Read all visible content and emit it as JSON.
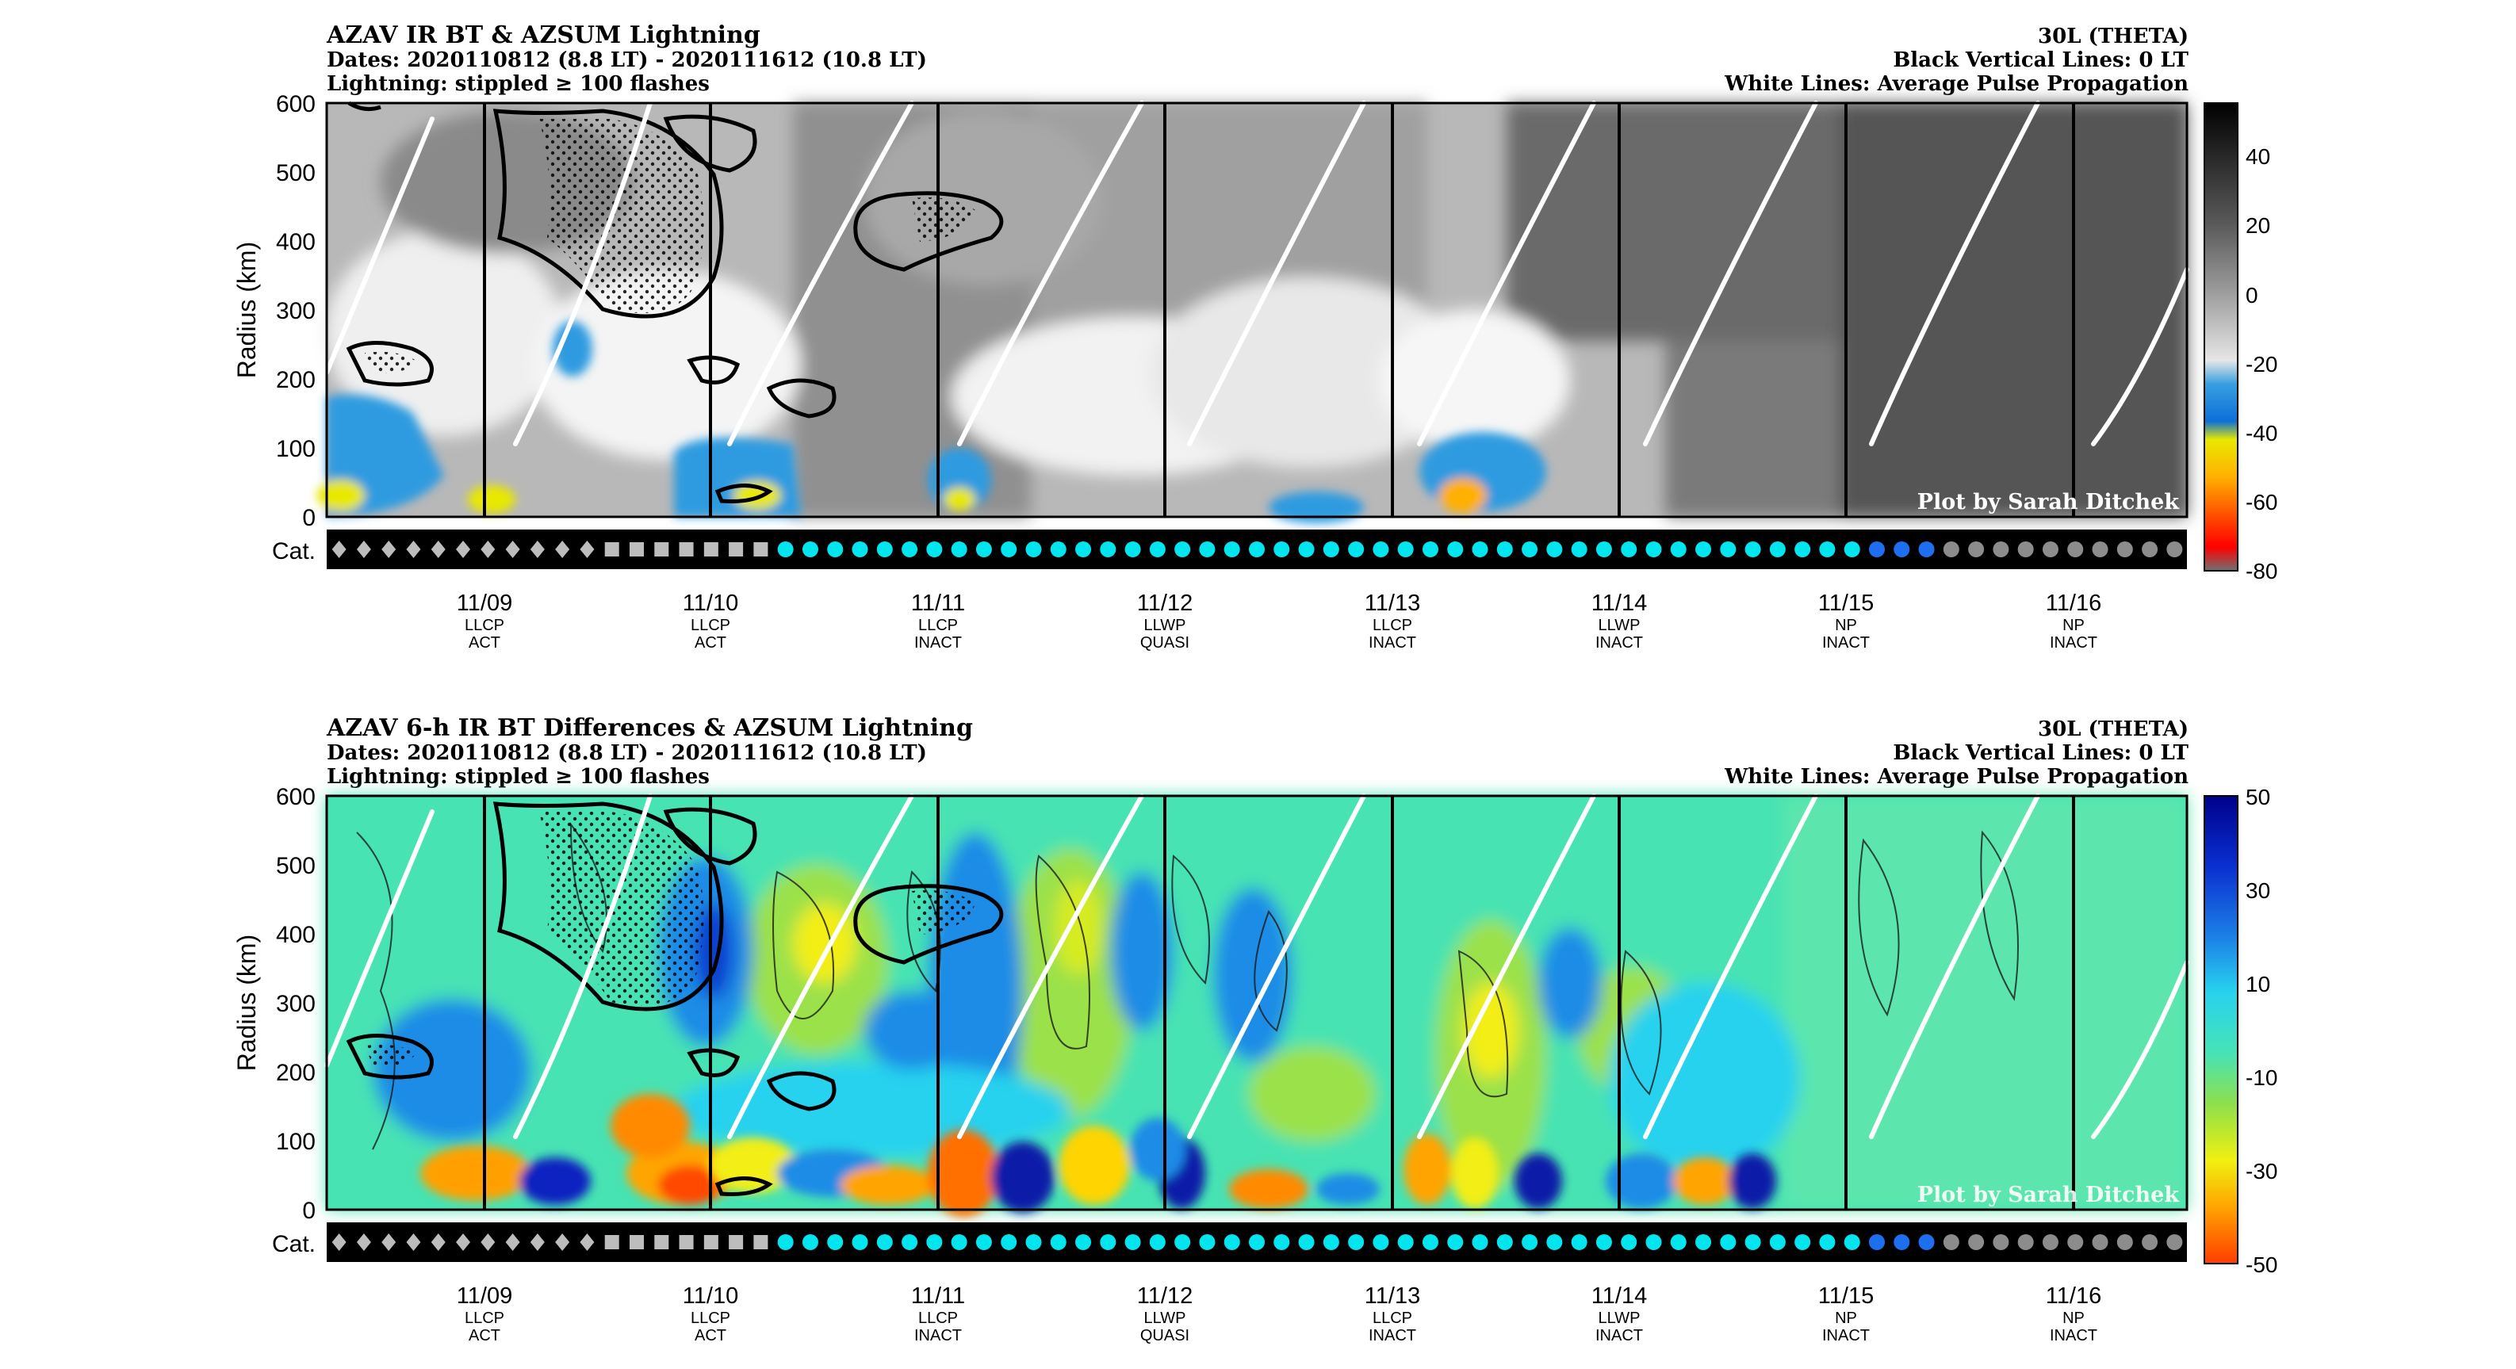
{
  "panels": [
    {
      "title": "AZAV IR BT & AZSUM Lightning",
      "dates": "Dates: 2020110812 (8.8 LT) - 2020111612 (10.8 LT)",
      "lightning": "Lightning: stippled ≥ 100 flashes",
      "right_1": "30L (THETA)",
      "right_2": "Black Vertical Lines: 0 LT",
      "right_3": "White Lines: Average Pulse Propagation",
      "credit": "Plot by Sarah Ditchek",
      "colorbar_ticks": [
        "40",
        "20",
        "0",
        "-20",
        "-40",
        "-60",
        "-80"
      ]
    },
    {
      "title": "AZAV 6-h IR BT Differences & AZSUM Lightning",
      "dates": "Dates: 2020110812 (8.8 LT) - 2020111612 (10.8 LT)",
      "lightning": "Lightning: stippled ≥ 100 flashes",
      "right_1": "30L (THETA)",
      "right_2": "Black Vertical Lines: 0 LT",
      "right_3": "White Lines: Average Pulse Propagation",
      "credit": "Plot by Sarah Ditchek",
      "colorbar_ticks": [
        "50",
        "30",
        "10",
        "-10",
        "-30",
        "-50"
      ]
    }
  ],
  "y_axis": {
    "label": "Radius (km)",
    "ticks": [
      "600",
      "500",
      "400",
      "300",
      "200",
      "100",
      "0"
    ]
  },
  "cat_label": "Cat.",
  "days": [
    {
      "date": "11/09",
      "regime": "LLCP",
      "phase": "ACT"
    },
    {
      "date": "11/10",
      "regime": "LLCP",
      "phase": "ACT"
    },
    {
      "date": "11/11",
      "regime": "LLCP",
      "phase": "INACT"
    },
    {
      "date": "11/12",
      "regime": "LLWP",
      "phase": "QUASI"
    },
    {
      "date": "11/13",
      "regime": "LLCP",
      "phase": "INACT"
    },
    {
      "date": "11/14",
      "regime": "LLWP",
      "phase": "INACT"
    },
    {
      "date": "11/15",
      "regime": "NP",
      "phase": "INACT"
    },
    {
      "date": "11/16",
      "regime": "NP",
      "phase": "INACT"
    }
  ],
  "chart_data": [
    {
      "type": "heatmap",
      "title": "AZAV IR BT & AZSUM Lightning",
      "ylabel": "Radius (km)",
      "ylim": [
        0,
        600
      ],
      "x_ticks": [
        "11/09",
        "11/10",
        "11/11",
        "11/12",
        "11/13",
        "11/14",
        "11/15",
        "11/16"
      ],
      "colorbar_range": [
        -80,
        50
      ],
      "colorbar_ticks": [
        40,
        20,
        0,
        -20,
        -40,
        -60,
        -80
      ]
    },
    {
      "type": "heatmap",
      "title": "AZAV 6-h IR BT Differences & AZSUM Lightning",
      "ylabel": "Radius (km)",
      "ylim": [
        0,
        600
      ],
      "x_ticks": [
        "11/09",
        "11/10",
        "11/11",
        "11/12",
        "11/13",
        "11/14",
        "11/15",
        "11/16"
      ],
      "colorbar_range": [
        -50,
        50
      ],
      "colorbar_ticks": [
        50,
        30,
        10,
        -10,
        -30,
        -50
      ]
    }
  ],
  "categories": [
    "diamond",
    "diamond",
    "diamond",
    "diamond",
    "diamond",
    "diamond",
    "diamond",
    "diamond",
    "diamond",
    "diamond",
    "diamond",
    "square",
    "square",
    "square",
    "square",
    "square",
    "square",
    "square",
    "cyan",
    "cyan",
    "cyan",
    "cyan",
    "cyan",
    "cyan",
    "cyan",
    "cyan",
    "cyan",
    "cyan",
    "cyan",
    "cyan",
    "cyan",
    "cyan",
    "cyan",
    "cyan",
    "cyan",
    "cyan",
    "cyan",
    "cyan",
    "cyan",
    "cyan",
    "cyan",
    "cyan",
    "cyan",
    "cyan",
    "cyan",
    "cyan",
    "cyan",
    "cyan",
    "cyan",
    "cyan",
    "cyan",
    "cyan",
    "cyan",
    "cyan",
    "cyan",
    "cyan",
    "cyan",
    "cyan",
    "cyan",
    "cyan",
    "cyan",
    "cyan",
    "blue",
    "blue",
    "blue",
    "gray",
    "gray",
    "gray",
    "gray",
    "gray",
    "gray",
    "gray",
    "gray",
    "gray",
    "gray"
  ],
  "colors": {
    "cyan": "#00e5ee",
    "blue": "#1e6ff0",
    "gray": "#8c8c8c",
    "diamond": "#bdbdbd",
    "square": "#bdbdbd",
    "bar": "#000000"
  }
}
